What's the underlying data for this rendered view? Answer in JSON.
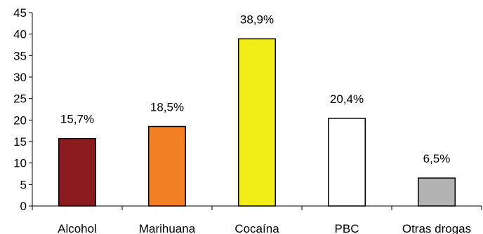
{
  "chart_data": {
    "type": "bar",
    "title": "",
    "xlabel": "",
    "ylabel": "",
    "categories": [
      "Alcohol",
      "Marihuana",
      "Cocaína",
      "PBC",
      "Otras drogas"
    ],
    "values": [
      15.7,
      18.5,
      38.9,
      20.4,
      6.5
    ],
    "data_labels": [
      "15,7%",
      "18,5%",
      "38,9%",
      "20,4%",
      "6,5%"
    ],
    "bar_colors": [
      "#8b1a1f",
      "#f08023",
      "#f2ec17",
      "#ffffff",
      "#b3b3b3"
    ],
    "ylim": [
      0,
      45
    ],
    "yticks": [
      0,
      5,
      10,
      15,
      20,
      25,
      30,
      35,
      40,
      45
    ],
    "grid": false,
    "legend": "none"
  }
}
